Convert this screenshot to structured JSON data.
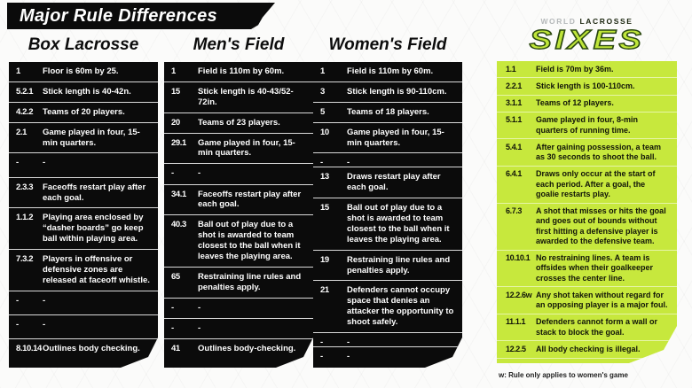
{
  "title": "Major Rule Differences",
  "columns": [
    {
      "header": "Box Lacrosse",
      "rows": [
        {
          "num": "1",
          "text": "Floor is 60m by 25."
        },
        {
          "num": "5.2.1",
          "text": "Stick length is 40-42n."
        },
        {
          "num": "4.2.2",
          "text": "Teams of 20 players."
        },
        {
          "num": "2.1",
          "text": "Game played in four, 15-min quarters."
        },
        {
          "num": "-",
          "text": "-",
          "dash": true
        },
        {
          "num": "2.3.3",
          "text": "Faceoffs restart play after each goal."
        },
        {
          "num": "1.1.2",
          "text": "Playing area enclosed by “dasher boards” go keep ball within playing area."
        },
        {
          "num": "7.3.2",
          "text": "Players in offensive or defensive zones are released at faceoff whistle."
        },
        {
          "num": "-",
          "text": "-",
          "dash": true
        },
        {
          "num": "-",
          "text": "-",
          "dash": true
        },
        {
          "num": "8.10.14",
          "text": "Outlines body checking."
        }
      ]
    },
    {
      "header": "Men's Field",
      "rows": [
        {
          "num": "1",
          "text": "Field is 110m by 60m."
        },
        {
          "num": "15",
          "text": "Stick length is 40-43/52-72in."
        },
        {
          "num": "20",
          "text": "Teams of 23 players."
        },
        {
          "num": "29.1",
          "text": "Game played in four, 15-min quarters."
        },
        {
          "num": "-",
          "text": "-",
          "dash": true
        },
        {
          "num": "34.1",
          "text": "Faceoffs restart play after each goal."
        },
        {
          "num": "40.3",
          "text": "Ball out of play due to a shot is awarded to team closest to the ball when it leaves the playing area."
        },
        {
          "num": "65",
          "text": "Restraining line rules and penalties apply."
        },
        {
          "num": "-",
          "text": "-",
          "dash": true
        },
        {
          "num": "-",
          "text": "-",
          "dash": true
        },
        {
          "num": "41",
          "text": "Outlines body-checking."
        }
      ]
    },
    {
      "header": "Women's Field",
      "rows": [
        {
          "num": "1",
          "text": "Field is 110m by 60m."
        },
        {
          "num": "3",
          "text": "Stick length is 90-110cm."
        },
        {
          "num": "5",
          "text": "Teams of 18 players."
        },
        {
          "num": "10",
          "text": "Game played in four, 15-min quarters."
        },
        {
          "num": "-",
          "text": "-",
          "dash": true
        },
        {
          "num": "13",
          "text": "Draws restart play after each goal."
        },
        {
          "num": "15",
          "text": "Ball out of play due to a shot is awarded to team closest to the ball when it leaves the playing area."
        },
        {
          "num": "19",
          "text": "Restraining line rules and penalties apply."
        },
        {
          "num": "21",
          "text": "Defenders cannot occupy space that denies an attacker the opportunity to shoot safely."
        },
        {
          "num": "-",
          "text": "-",
          "dash": true
        },
        {
          "num": "-",
          "text": "-",
          "dash": true
        }
      ]
    }
  ],
  "sixes": {
    "logo": {
      "world": "WORLD",
      "lacrosse": "LACROSSE",
      "name": "SIXES"
    },
    "rows": [
      {
        "num": "1.1",
        "text": "Field is 70m by 36m."
      },
      {
        "num": "2.2.1",
        "text": "Stick length is 100-110cm."
      },
      {
        "num": "3.1.1",
        "text": "Teams of 12 players."
      },
      {
        "num": "5.1.1",
        "text": "Game played in four, 8-min quarters of running time."
      },
      {
        "num": "5.4.1",
        "text": "After gaining possession, a team as 30 seconds to shoot the ball."
      },
      {
        "num": "6.4.1",
        "text": "Draws only occur at the start of each period. After a goal, the goalie restarts play."
      },
      {
        "num": "6.7.3",
        "text": "A shot that misses or hits the goal and goes out of bounds without first hitting a defensive player is awarded to the defensive team."
      },
      {
        "num": "10.10.1",
        "text": "No restraining lines. A team is offsides when their goalkeeper crosses the center line."
      },
      {
        "num": "12.2.6w",
        "text": "Any shot taken without regard for an opposing player is a major foul."
      },
      {
        "num": "11.1.1",
        "text": "Defenders cannot form a wall or stack to block the goal."
      },
      {
        "num": "12.2.5",
        "text": "All body checking is illegal."
      }
    ],
    "footnote": "w: Rule only applies to women's game"
  },
  "colors": {
    "panel_black": "#0b0b0b",
    "sixes_green": "#c7e83d",
    "logo_green": "#bfe53a",
    "text_white": "#ffffff"
  }
}
